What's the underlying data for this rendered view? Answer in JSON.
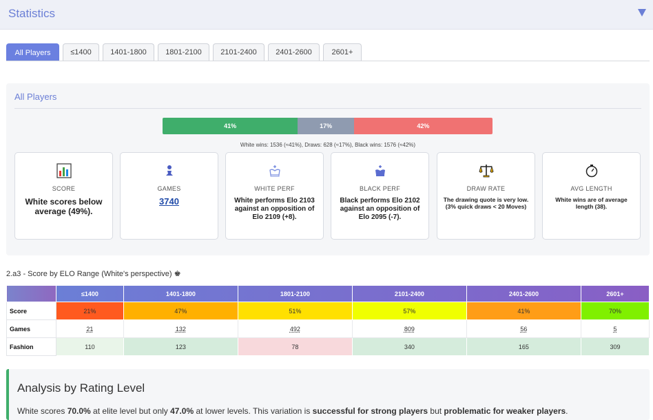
{
  "header": {
    "title": "Statistics"
  },
  "tabs": [
    {
      "label": "All Players",
      "active": true,
      "width": 77
    },
    {
      "label": "≤1400",
      "active": false,
      "width": 53
    },
    {
      "label": "1401-1800",
      "active": false,
      "width": 75
    },
    {
      "label": "1801-2100",
      "active": false,
      "width": 75
    },
    {
      "label": "2101-2400",
      "active": false,
      "width": 75
    },
    {
      "label": "2401-2600",
      "active": false,
      "width": 75
    },
    {
      "label": "2601+",
      "active": false,
      "width": 56
    }
  ],
  "section": {
    "title": "All Players"
  },
  "result_bar": {
    "white_pct": 41,
    "draw_pct": 17,
    "black_pct": 42,
    "white_label": "41%",
    "draw_label": "17%",
    "black_label": "42%",
    "caption": "White wins: 1536 (≈41%), Draws: 628 (≈17%), Black wins: 1576 (≈42%)"
  },
  "cards": {
    "score": {
      "label": "SCORE",
      "value": "White scores below average (49%).",
      "icon": "bar-chart-icon"
    },
    "games": {
      "label": "GAMES",
      "value": "3740",
      "icon": "chess-pawn-icon"
    },
    "white_perf": {
      "label": "WHITE PERF",
      "value": "White performs Elo 2103 against an opposition of Elo 2109 (+8).",
      "icon": "white-king-icon"
    },
    "black_perf": {
      "label": "BLACK PERF",
      "value": "Black performs Elo 2102 against an opposition of Elo 2095 (-7).",
      "icon": "black-king-icon"
    },
    "draw_rate": {
      "label": "DRAW RATE",
      "value": "The drawing quote is very low. (3% quick draws < 20 Moves)",
      "icon": "scales-icon"
    },
    "avg_length": {
      "label": "AVG LENGTH",
      "value": "White wins are of average length (38).",
      "icon": "stopwatch-icon"
    }
  },
  "elo_table": {
    "title": "2.a3 - Score by ELO Range (White's perspective) ♚",
    "columns": [
      "≤1400",
      "1401-1800",
      "1801-2100",
      "2101-2400",
      "2401-2600",
      "2601+"
    ],
    "rows": {
      "score": {
        "label": "Score",
        "values": [
          "21%",
          "47%",
          "51%",
          "57%",
          "41%",
          "70%"
        ],
        "colors": [
          "#ff5a1f",
          "#ffb000",
          "#ffe000",
          "#f0ff00",
          "#ff9d17",
          "#80f000"
        ]
      },
      "games": {
        "label": "Games",
        "values": [
          "21",
          "132",
          "492",
          "809",
          "56",
          "5"
        ]
      },
      "fashion": {
        "label": "Fashion",
        "values": [
          "110",
          "123",
          "78",
          "340",
          "165",
          "309"
        ],
        "colors": [
          "#e9f5e9",
          "#d5ecdc",
          "#f8d9dc",
          "#d5ecdc",
          "#d5ecdc",
          "#d5ecdc"
        ]
      }
    }
  },
  "analysis": {
    "title": "Analysis by Rating Level",
    "parts": [
      {
        "text": "White scores ",
        "bold": false
      },
      {
        "text": "70.0%",
        "bold": true
      },
      {
        "text": " at elite level but only ",
        "bold": false
      },
      {
        "text": "47.0%",
        "bold": true
      },
      {
        "text": " at lower levels. This variation is ",
        "bold": false
      },
      {
        "text": "successful for strong players",
        "bold": true
      },
      {
        "text": " but ",
        "bold": false
      },
      {
        "text": "problematic for weaker players",
        "bold": true
      },
      {
        "text": ".",
        "bold": false
      }
    ]
  }
}
